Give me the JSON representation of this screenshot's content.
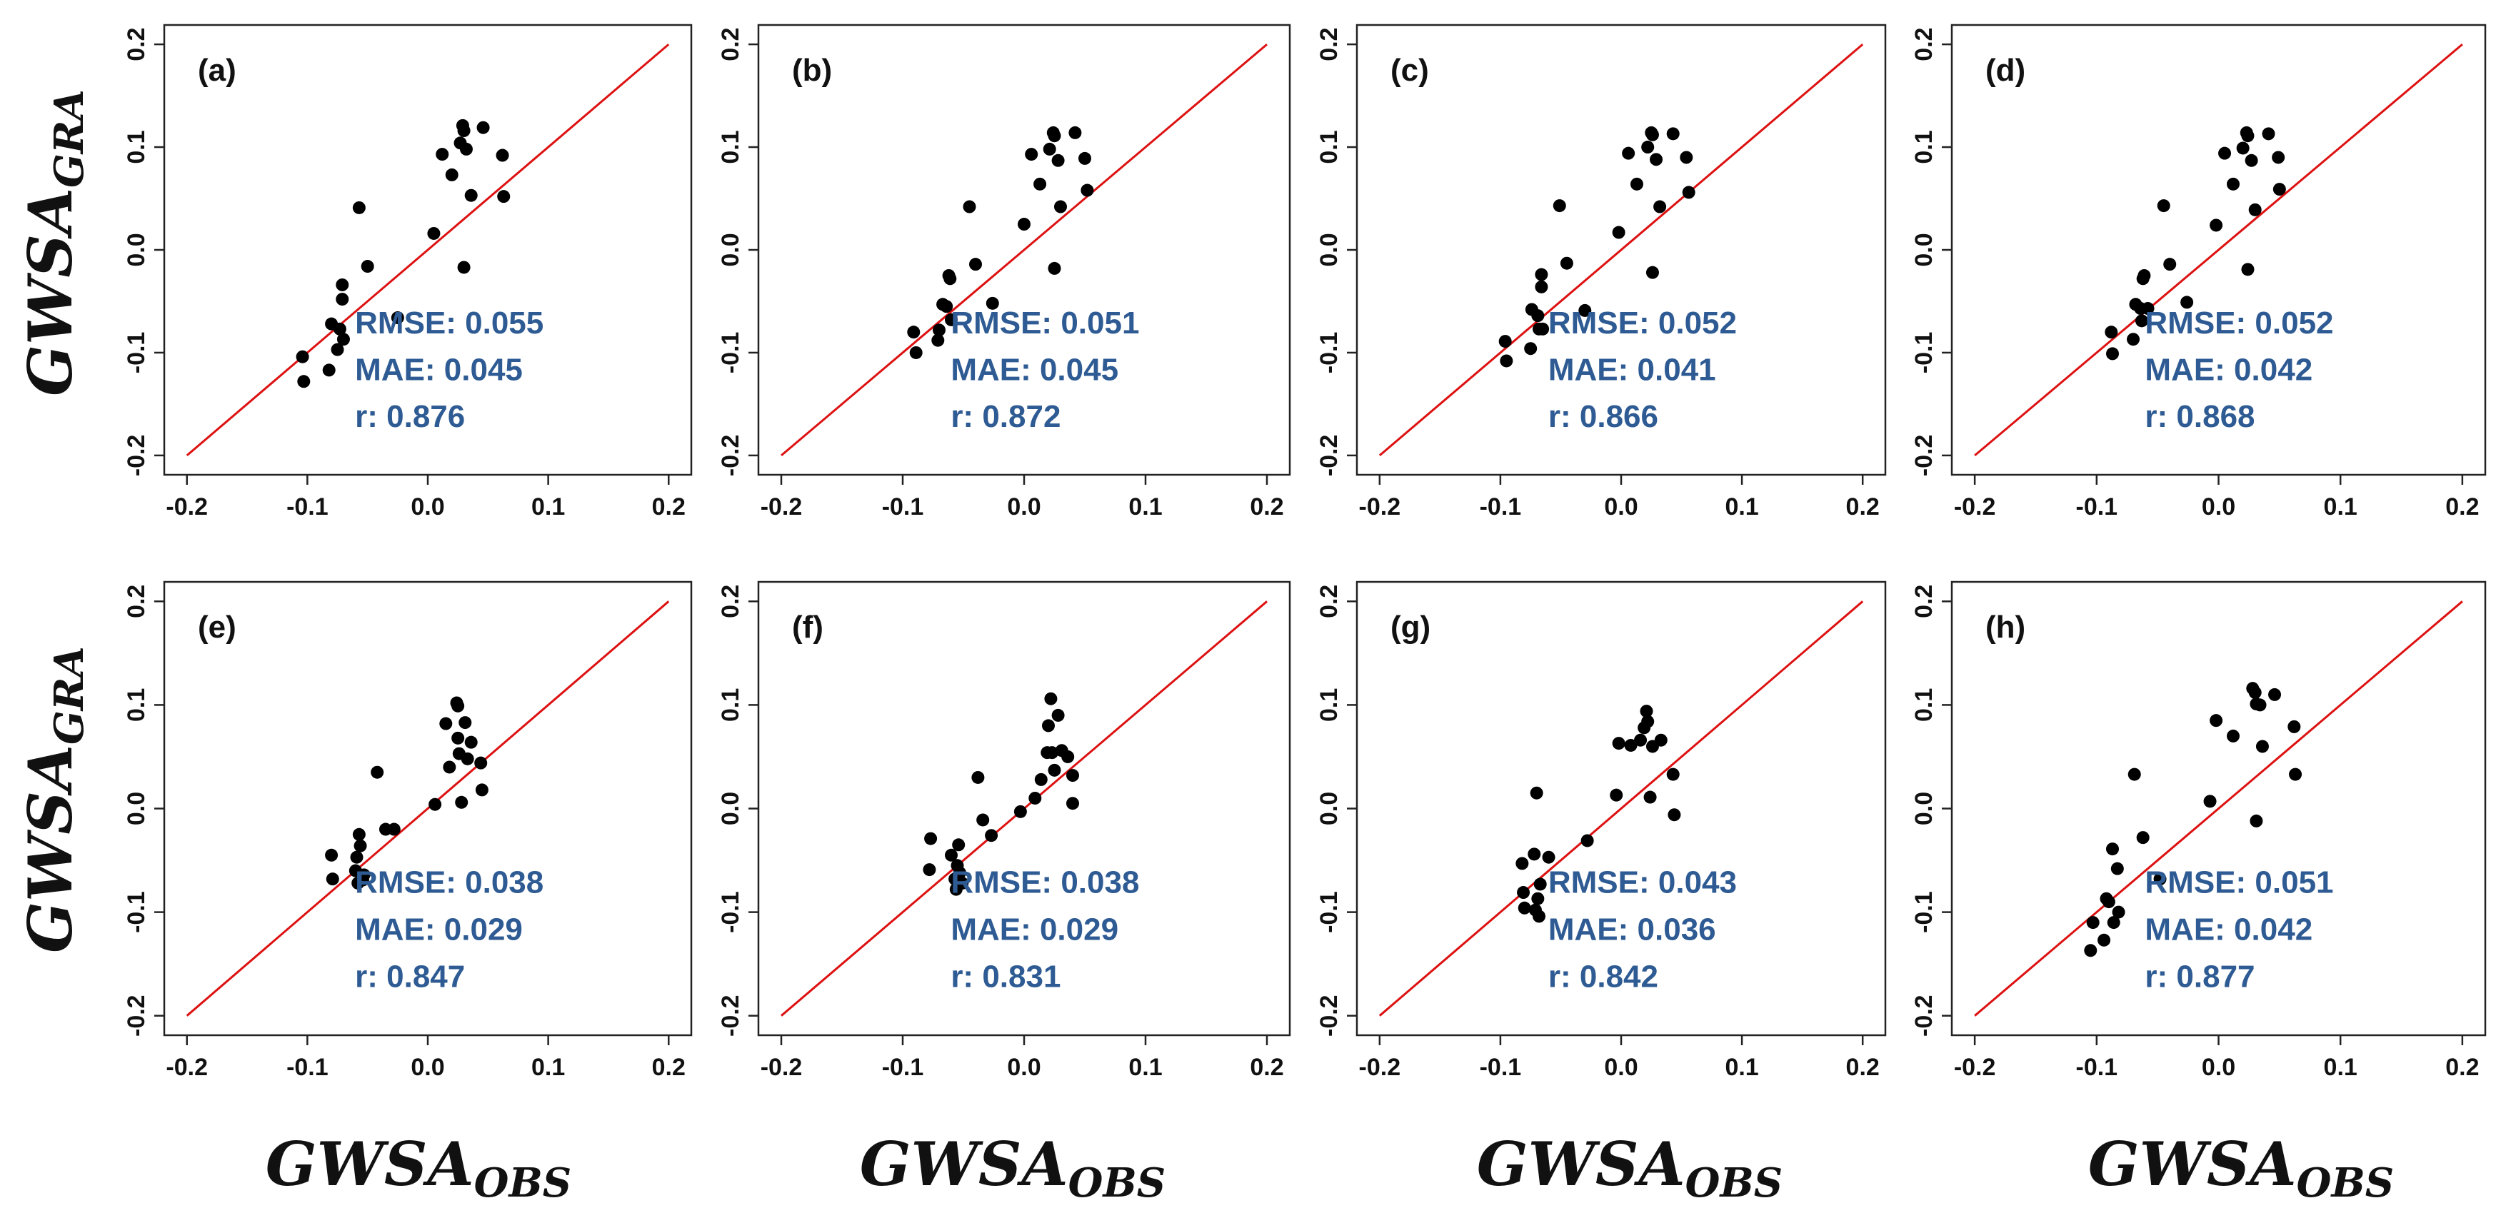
{
  "figure": {
    "xlabel_main": "GWSA",
    "xlabel_sub": "OBS",
    "ylabel_main": "GWSA",
    "ylabel_sub": "GRA",
    "line_color": "#dd1111",
    "point_color": "#000000",
    "stat_color": "#2e5b93"
  },
  "chart_data": [
    {
      "type": "scatter",
      "label": "(a)",
      "xlim": [
        -0.2,
        0.2
      ],
      "ylim": [
        -0.2,
        0.2
      ],
      "xticks": [
        "-0.2",
        "-0.1",
        "0.0",
        "0.1",
        "0.2"
      ],
      "yticks": [
        "-0.2",
        "-0.1",
        "0.0",
        "0.1",
        "0.2"
      ],
      "reference_line": "1:1",
      "stats": {
        "rmse": "RMSE: 0.055",
        "mae": "MAE: 0.045",
        "r": "r: 0.876"
      },
      "points": [
        [
          -0.104,
          -0.104
        ],
        [
          -0.103,
          -0.128
        ],
        [
          -0.082,
          -0.117
        ],
        [
          -0.08,
          -0.072
        ],
        [
          -0.075,
          -0.097
        ],
        [
          -0.073,
          -0.077
        ],
        [
          -0.071,
          -0.048
        ],
        [
          -0.071,
          -0.034
        ],
        [
          -0.07,
          -0.087
        ],
        [
          -0.057,
          0.041
        ],
        [
          -0.05,
          -0.016
        ],
        [
          -0.025,
          -0.066
        ],
        [
          0.005,
          0.016
        ],
        [
          0.012,
          0.093
        ],
        [
          0.02,
          0.073
        ],
        [
          0.027,
          0.104
        ],
        [
          0.029,
          0.121
        ],
        [
          0.03,
          0.116
        ],
        [
          0.03,
          -0.017
        ],
        [
          0.032,
          0.098
        ],
        [
          0.036,
          0.053
        ],
        [
          0.046,
          0.119
        ],
        [
          0.062,
          0.092
        ],
        [
          0.063,
          0.052
        ]
      ]
    },
    {
      "type": "scatter",
      "label": "(b)",
      "xlim": [
        -0.2,
        0.2
      ],
      "ylim": [
        -0.2,
        0.2
      ],
      "xticks": [
        "-0.2",
        "-0.1",
        "0.0",
        "0.1",
        "0.2"
      ],
      "yticks": [
        "-0.2",
        "-0.1",
        "0.0",
        "0.1",
        "0.2"
      ],
      "reference_line": "1:1",
      "stats": {
        "rmse": "RMSE: 0.051",
        "mae": "MAE: 0.045",
        "r": "r: 0.872"
      },
      "points": [
        [
          -0.091,
          -0.08
        ],
        [
          -0.089,
          -0.1
        ],
        [
          -0.071,
          -0.088
        ],
        [
          -0.07,
          -0.078
        ],
        [
          -0.067,
          -0.053
        ],
        [
          -0.064,
          -0.055
        ],
        [
          -0.062,
          -0.025
        ],
        [
          -0.061,
          -0.028
        ],
        [
          -0.06,
          -0.068
        ],
        [
          -0.045,
          0.042
        ],
        [
          -0.04,
          -0.014
        ],
        [
          -0.026,
          -0.052
        ],
        [
          0.0,
          0.025
        ],
        [
          0.006,
          0.093
        ],
        [
          0.013,
          0.064
        ],
        [
          0.021,
          0.098
        ],
        [
          0.024,
          0.114
        ],
        [
          0.025,
          0.111
        ],
        [
          0.025,
          -0.018
        ],
        [
          0.028,
          0.087
        ],
        [
          0.03,
          0.042
        ],
        [
          0.042,
          0.114
        ],
        [
          0.05,
          0.089
        ],
        [
          0.052,
          0.058
        ]
      ]
    },
    {
      "type": "scatter",
      "label": "(c)",
      "xlim": [
        -0.2,
        0.2
      ],
      "ylim": [
        -0.2,
        0.2
      ],
      "xticks": [
        "-0.2",
        "-0.1",
        "0.0",
        "0.1",
        "0.2"
      ],
      "yticks": [
        "-0.2",
        "-0.1",
        "0.0",
        "0.1",
        "0.2"
      ],
      "reference_line": "1:1",
      "stats": {
        "rmse": "RMSE: 0.052",
        "mae": "MAE: 0.041",
        "r": "r: 0.866"
      },
      "points": [
        [
          -0.096,
          -0.089
        ],
        [
          -0.095,
          -0.108
        ],
        [
          -0.075,
          -0.096
        ],
        [
          -0.074,
          -0.058
        ],
        [
          -0.069,
          -0.064
        ],
        [
          -0.068,
          -0.077
        ],
        [
          -0.066,
          -0.036
        ],
        [
          -0.066,
          -0.024
        ],
        [
          -0.065,
          -0.077
        ],
        [
          -0.051,
          0.043
        ],
        [
          -0.045,
          -0.013
        ],
        [
          -0.03,
          -0.059
        ],
        [
          -0.002,
          0.017
        ],
        [
          0.006,
          0.094
        ],
        [
          0.013,
          0.064
        ],
        [
          0.022,
          0.1
        ],
        [
          0.025,
          0.114
        ],
        [
          0.026,
          0.112
        ],
        [
          0.026,
          -0.022
        ],
        [
          0.029,
          0.088
        ],
        [
          0.032,
          0.042
        ],
        [
          0.043,
          0.113
        ],
        [
          0.054,
          0.09
        ],
        [
          0.056,
          0.056
        ]
      ]
    },
    {
      "type": "scatter",
      "label": "(d)",
      "xlim": [
        -0.2,
        0.2
      ],
      "ylim": [
        -0.2,
        0.2
      ],
      "xticks": [
        "-0.2",
        "-0.1",
        "0.0",
        "0.1",
        "0.2"
      ],
      "yticks": [
        "-0.2",
        "-0.1",
        "0.0",
        "0.1",
        "0.2"
      ],
      "reference_line": "1:1",
      "stats": {
        "rmse": "RMSE: 0.052",
        "mae": "MAE: 0.042",
        "r": "r: 0.868"
      },
      "points": [
        [
          -0.088,
          -0.08
        ],
        [
          -0.087,
          -0.101
        ],
        [
          -0.07,
          -0.087
        ],
        [
          -0.068,
          -0.053
        ],
        [
          -0.064,
          -0.057
        ],
        [
          -0.063,
          -0.069
        ],
        [
          -0.062,
          -0.028
        ],
        [
          -0.061,
          -0.025
        ],
        [
          -0.058,
          -0.057
        ],
        [
          -0.045,
          0.043
        ],
        [
          -0.04,
          -0.014
        ],
        [
          -0.026,
          -0.051
        ],
        [
          -0.002,
          0.024
        ],
        [
          0.005,
          0.094
        ],
        [
          0.012,
          0.064
        ],
        [
          0.02,
          0.099
        ],
        [
          0.023,
          0.114
        ],
        [
          0.024,
          0.111
        ],
        [
          0.024,
          -0.019
        ],
        [
          0.027,
          0.087
        ],
        [
          0.03,
          0.039
        ],
        [
          0.041,
          0.113
        ],
        [
          0.049,
          0.09
        ],
        [
          0.05,
          0.059
        ]
      ]
    },
    {
      "type": "scatter",
      "label": "(e)",
      "xlim": [
        -0.2,
        0.2
      ],
      "ylim": [
        -0.2,
        0.2
      ],
      "xticks": [
        "-0.2",
        "-0.1",
        "0.0",
        "0.1",
        "0.2"
      ],
      "yticks": [
        "-0.2",
        "-0.1",
        "0.0",
        "0.1",
        "0.2"
      ],
      "reference_line": "1:1",
      "stats": {
        "rmse": "RMSE: 0.038",
        "mae": "MAE: 0.029",
        "r": "r: 0.847"
      },
      "points": [
        [
          -0.08,
          -0.045
        ],
        [
          -0.079,
          -0.068
        ],
        [
          -0.06,
          -0.06
        ],
        [
          -0.059,
          -0.047
        ],
        [
          -0.058,
          -0.072
        ],
        [
          -0.057,
          -0.025
        ],
        [
          -0.056,
          -0.036
        ],
        [
          -0.054,
          -0.069
        ],
        [
          -0.053,
          -0.064
        ],
        [
          -0.042,
          0.035
        ],
        [
          -0.035,
          -0.02
        ],
        [
          -0.028,
          -0.02
        ],
        [
          0.006,
          0.004
        ],
        [
          0.015,
          0.082
        ],
        [
          0.018,
          0.04
        ],
        [
          0.024,
          0.102
        ],
        [
          0.025,
          0.099
        ],
        [
          0.025,
          0.068
        ],
        [
          0.026,
          0.053
        ],
        [
          0.028,
          0.006
        ],
        [
          0.031,
          0.083
        ],
        [
          0.033,
          0.048
        ],
        [
          0.036,
          0.064
        ],
        [
          0.044,
          0.044
        ],
        [
          0.045,
          0.018
        ]
      ]
    },
    {
      "type": "scatter",
      "label": "(f)",
      "xlim": [
        -0.2,
        0.2
      ],
      "ylim": [
        -0.2,
        0.2
      ],
      "xticks": [
        "-0.2",
        "-0.1",
        "0.0",
        "0.1",
        "0.2"
      ],
      "yticks": [
        "-0.2",
        "-0.1",
        "0.0",
        "0.1",
        "0.2"
      ],
      "reference_line": "1:1",
      "stats": {
        "rmse": "RMSE: 0.038",
        "mae": "MAE: 0.029",
        "r": "r: 0.831"
      },
      "points": [
        [
          -0.078,
          -0.059
        ],
        [
          -0.077,
          -0.029
        ],
        [
          -0.06,
          -0.045
        ],
        [
          -0.057,
          -0.068
        ],
        [
          -0.056,
          -0.078
        ],
        [
          -0.055,
          -0.055
        ],
        [
          -0.054,
          -0.035
        ],
        [
          -0.053,
          -0.062
        ],
        [
          -0.051,
          -0.072
        ],
        [
          -0.038,
          0.03
        ],
        [
          -0.034,
          -0.011
        ],
        [
          -0.027,
          -0.026
        ],
        [
          -0.003,
          -0.003
        ],
        [
          0.009,
          0.01
        ],
        [
          0.014,
          0.028
        ],
        [
          0.019,
          0.054
        ],
        [
          0.02,
          0.08
        ],
        [
          0.022,
          0.106
        ],
        [
          0.023,
          0.054
        ],
        [
          0.025,
          0.037
        ],
        [
          0.028,
          0.09
        ],
        [
          0.031,
          0.056
        ],
        [
          0.036,
          0.05
        ],
        [
          0.04,
          0.032
        ],
        [
          0.04,
          0.005
        ]
      ]
    },
    {
      "type": "scatter",
      "label": "(g)",
      "xlim": [
        -0.2,
        0.2
      ],
      "ylim": [
        -0.2,
        0.2
      ],
      "xticks": [
        "-0.2",
        "-0.1",
        "0.0",
        "0.1",
        "0.2"
      ],
      "yticks": [
        "-0.2",
        "-0.1",
        "0.0",
        "0.1",
        "0.2"
      ],
      "reference_line": "1:1",
      "stats": {
        "rmse": "RMSE: 0.043",
        "mae": "MAE: 0.036",
        "r": "r: 0.842"
      },
      "points": [
        [
          -0.082,
          -0.053
        ],
        [
          -0.081,
          -0.081
        ],
        [
          -0.08,
          -0.096
        ],
        [
          -0.072,
          -0.044
        ],
        [
          -0.071,
          -0.098
        ],
        [
          -0.07,
          0.015
        ],
        [
          -0.069,
          -0.087
        ],
        [
          -0.068,
          -0.104
        ],
        [
          -0.067,
          -0.073
        ],
        [
          -0.06,
          -0.047
        ],
        [
          -0.028,
          -0.031
        ],
        [
          -0.004,
          0.013
        ],
        [
          -0.002,
          0.063
        ],
        [
          0.008,
          0.061
        ],
        [
          0.016,
          0.066
        ],
        [
          0.019,
          0.078
        ],
        [
          0.021,
          0.094
        ],
        [
          0.022,
          0.084
        ],
        [
          0.024,
          0.011
        ],
        [
          0.026,
          0.06
        ],
        [
          0.033,
          0.066
        ],
        [
          0.043,
          0.033
        ],
        [
          0.044,
          -0.006
        ]
      ]
    },
    {
      "type": "scatter",
      "label": "(h)",
      "xlim": [
        -0.2,
        0.2
      ],
      "ylim": [
        -0.2,
        0.2
      ],
      "xticks": [
        "-0.2",
        "-0.1",
        "0.0",
        "0.1",
        "0.2"
      ],
      "yticks": [
        "-0.2",
        "-0.1",
        "0.0",
        "0.1",
        "0.2"
      ],
      "reference_line": "1:1",
      "stats": {
        "rmse": "RMSE: 0.051",
        "mae": "MAE: 0.042",
        "r": "r: 0.877"
      },
      "points": [
        [
          -0.105,
          -0.137
        ],
        [
          -0.103,
          -0.11
        ],
        [
          -0.094,
          -0.127
        ],
        [
          -0.092,
          -0.087
        ],
        [
          -0.09,
          -0.09
        ],
        [
          -0.087,
          -0.039
        ],
        [
          -0.086,
          -0.11
        ],
        [
          -0.083,
          -0.058
        ],
        [
          -0.082,
          -0.1
        ],
        [
          -0.069,
          0.033
        ],
        [
          -0.062,
          -0.028
        ],
        [
          -0.048,
          -0.068
        ],
        [
          -0.007,
          0.007
        ],
        [
          -0.002,
          0.085
        ],
        [
          0.012,
          0.07
        ],
        [
          0.028,
          0.116
        ],
        [
          0.03,
          0.112
        ],
        [
          0.031,
          -0.012
        ],
        [
          0.031,
          0.101
        ],
        [
          0.034,
          0.1
        ],
        [
          0.036,
          0.06
        ],
        [
          0.046,
          0.11
        ],
        [
          0.062,
          0.079
        ],
        [
          0.063,
          0.033
        ]
      ]
    }
  ]
}
